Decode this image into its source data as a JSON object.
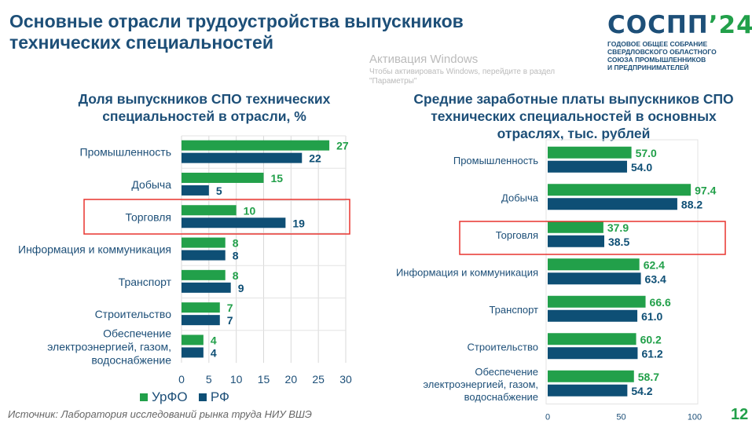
{
  "header": {
    "title": "Основные отрасли трудоустройства выпускников технических специальностей",
    "logo_text": "СОСПП'24",
    "logo_subtitle": "ГОДОВОЕ ОБЩЕЕ СОБРАНИЕ\nСВЕРДЛОВСКОГО ОБЛАСТНОГО\nСОЮЗА ПРОМЫШЛЕННИКОВ\nИ ПРЕДПРИНИМАТЕЛЕЙ"
  },
  "colors": {
    "urfo": "#22a04a",
    "rf": "#0e4f75",
    "highlight": "#e8342f",
    "title": "#1d4f78"
  },
  "legend": {
    "urfo": "УрФО",
    "rf": "РФ"
  },
  "chart_data": [
    {
      "type": "bar",
      "orientation": "horizontal",
      "title": "Доля выпускников СПО технических специальностей в отрасли, %",
      "categories": [
        "Промышленность",
        "Добыча",
        "Торговля",
        "Информация и коммуникация",
        "Транспорт",
        "Строительство",
        "Обеспечение электроэнергией, газом, водоснабжение"
      ],
      "series": [
        {
          "name": "УрФО",
          "values": [
            27,
            15,
            10,
            8,
            8,
            7,
            4
          ]
        },
        {
          "name": "РФ",
          "values": [
            22,
            5,
            19,
            8,
            9,
            7,
            4
          ]
        }
      ],
      "xlim": [
        0,
        30
      ],
      "xticks": [
        "0",
        "5",
        "10",
        "15",
        "20",
        "25",
        "30"
      ],
      "grid": true,
      "highlighted_category": "Торговля",
      "legend_position": "bottom"
    },
    {
      "type": "bar",
      "orientation": "horizontal",
      "title": "Средние заработные платы выпускников СПО технических специальностей в основных отраслях, тыс. рублей",
      "categories": [
        "Промышленность",
        "Добыча",
        "Торговля",
        "Информация и коммуникация",
        "Транспорт",
        "Строительство",
        "Обеспечение электроэнергией, газом, водоснабжение"
      ],
      "series": [
        {
          "name": "УрФО",
          "values": [
            57.0,
            97.4,
            37.9,
            62.4,
            66.6,
            60.2,
            58.7
          ]
        },
        {
          "name": "РФ",
          "values": [
            54.0,
            88.2,
            38.5,
            63.4,
            61.0,
            61.2,
            54.2
          ]
        }
      ],
      "value_labels": [
        [
          "57.0",
          "97.4",
          "37.9",
          "62.4",
          "66.6",
          "60.2",
          "58.7"
        ],
        [
          "54.0",
          "88.2",
          "38.5",
          "63.4",
          "61.0",
          "61.2",
          "54.2"
        ]
      ],
      "xlim": [
        0,
        100
      ],
      "xticks": [
        "0",
        "50",
        "100"
      ],
      "grid": false,
      "highlighted_category": "Торговля"
    }
  ],
  "footer": {
    "source": "Источник: Лаборатория исследований рынка труда НИУ ВШЭ",
    "page_number": "12"
  },
  "watermark": {
    "line1": "Активация Windows",
    "line2": "Чтобы активировать Windows, перейдите в раздел \"Параметры\""
  }
}
